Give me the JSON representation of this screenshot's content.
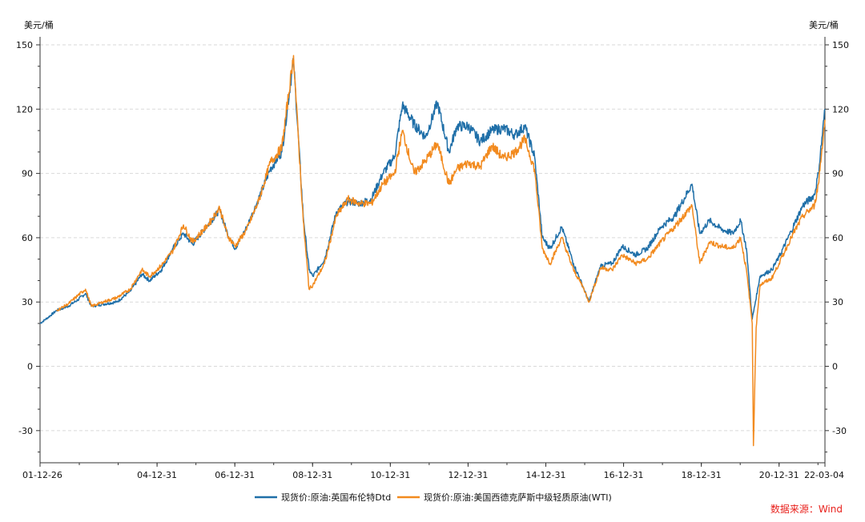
{
  "chart_data": {
    "type": "line",
    "title": "",
    "y_unit_left": "美元/桶",
    "y_unit_right": "美元/桶",
    "ylim": [
      -45,
      150
    ],
    "yticks": [
      150,
      120,
      90,
      60,
      30,
      0,
      -30
    ],
    "x_tick_labels": [
      "01-12-26",
      "04-12-31",
      "06-12-31",
      "08-12-31",
      "10-12-31",
      "12-12-31",
      "14-12-31",
      "16-12-31",
      "18-12-31",
      "20-12-31",
      "22-03-04"
    ],
    "x_tick_dates": [
      2001.98,
      2004.99,
      2006.99,
      2008.99,
      2010.99,
      2012.99,
      2014.99,
      2016.99,
      2018.99,
      2020.99,
      2022.17
    ],
    "xlim": [
      2001.98,
      2022.17
    ],
    "grid": true,
    "series": [
      {
        "name": "现货价:原油:英国布伦特Dtd",
        "color": "#1f6fa8",
        "x": [
          2001.98,
          2002.2,
          2002.4,
          2002.7,
          2002.95,
          2003.15,
          2003.3,
          2003.6,
          2003.95,
          2004.3,
          2004.6,
          2004.8,
          2005.1,
          2005.4,
          2005.67,
          2005.9,
          2006.3,
          2006.6,
          2006.8,
          2007.0,
          2007.3,
          2007.6,
          2007.9,
          2008.2,
          2008.5,
          2008.75,
          2008.9,
          2009.0,
          2009.3,
          2009.6,
          2009.9,
          2010.2,
          2010.5,
          2010.8,
          2011.1,
          2011.3,
          2011.6,
          2011.9,
          2012.2,
          2012.5,
          2012.7,
          2013.0,
          2013.3,
          2013.6,
          2013.9,
          2014.2,
          2014.45,
          2014.7,
          2014.9,
          2015.1,
          2015.4,
          2015.7,
          2015.95,
          2016.1,
          2016.4,
          2016.7,
          2016.95,
          2017.3,
          2017.6,
          2017.95,
          2018.3,
          2018.75,
          2018.95,
          2019.2,
          2019.5,
          2019.8,
          2020.0,
          2020.15,
          2020.3,
          2020.5,
          2020.8,
          2020.99,
          2021.3,
          2021.6,
          2021.9,
          2022.0,
          2022.17
        ],
        "values": [
          20,
          23,
          26,
          28,
          31,
          34,
          28,
          29,
          30,
          35,
          43,
          40,
          45,
          55,
          62,
          57,
          66,
          73,
          62,
          55,
          65,
          78,
          92,
          100,
          143,
          70,
          45,
          42,
          50,
          72,
          77,
          76,
          78,
          90,
          98,
          122,
          113,
          107,
          123,
          100,
          112,
          112,
          105,
          110,
          111,
          108,
          112,
          98,
          60,
          55,
          65,
          48,
          37,
          30,
          47,
          48,
          56,
          52,
          55,
          65,
          70,
          85,
          62,
          68,
          64,
          62,
          68,
          55,
          22,
          42,
          45,
          51,
          63,
          75,
          80,
          90,
          120
        ]
      },
      {
        "name": "现货价:原油:美国西德克萨斯中级轻质原油(WTI)",
        "color": "#f28a1e",
        "x": [
          2002.4,
          2002.7,
          2002.95,
          2003.15,
          2003.3,
          2003.6,
          2003.95,
          2004.3,
          2004.6,
          2004.8,
          2005.1,
          2005.4,
          2005.67,
          2005.9,
          2006.3,
          2006.6,
          2006.8,
          2007.0,
          2007.3,
          2007.6,
          2007.9,
          2008.2,
          2008.5,
          2008.75,
          2008.9,
          2009.0,
          2009.3,
          2009.6,
          2009.9,
          2010.2,
          2010.5,
          2010.8,
          2011.1,
          2011.3,
          2011.6,
          2011.9,
          2012.2,
          2012.5,
          2012.7,
          2013.0,
          2013.3,
          2013.6,
          2013.9,
          2014.2,
          2014.45,
          2014.7,
          2014.9,
          2015.1,
          2015.4,
          2015.7,
          2015.95,
          2016.1,
          2016.4,
          2016.7,
          2016.95,
          2017.3,
          2017.6,
          2017.95,
          2018.3,
          2018.75,
          2018.95,
          2019.2,
          2019.5,
          2019.8,
          2020.0,
          2020.15,
          2020.3,
          2020.33,
          2020.4,
          2020.5,
          2020.8,
          2020.99,
          2021.3,
          2021.6,
          2021.9,
          2022.0,
          2022.17
        ],
        "values": [
          26,
          29,
          33,
          36,
          28,
          30,
          32,
          36,
          45,
          42,
          47,
          54,
          66,
          58,
          66,
          74,
          61,
          56,
          64,
          77,
          95,
          102,
          145,
          68,
          36,
          38,
          48,
          70,
          78,
          76,
          76,
          85,
          90,
          110,
          90,
          96,
          104,
          85,
          92,
          95,
          93,
          103,
          97,
          100,
          106,
          92,
          55,
          48,
          60,
          45,
          37,
          30,
          46,
          45,
          52,
          48,
          50,
          58,
          65,
          75,
          48,
          58,
          56,
          55,
          60,
          45,
          20,
          -37,
          18,
          38,
          41,
          48,
          60,
          70,
          75,
          85,
          115
        ]
      }
    ]
  },
  "legend": {
    "brent_label": "现货价:原油:英国布伦特Dtd",
    "wti_label": "现货价:原油:美国西德克萨斯中级轻质原油(WTI)"
  },
  "source_text": "数据来源：Wind",
  "colors": {
    "brent": "#1f6fa8",
    "wti": "#f28a1e",
    "source": "#e8211c",
    "grid": "#d9d9d9",
    "axis": "#333333"
  }
}
